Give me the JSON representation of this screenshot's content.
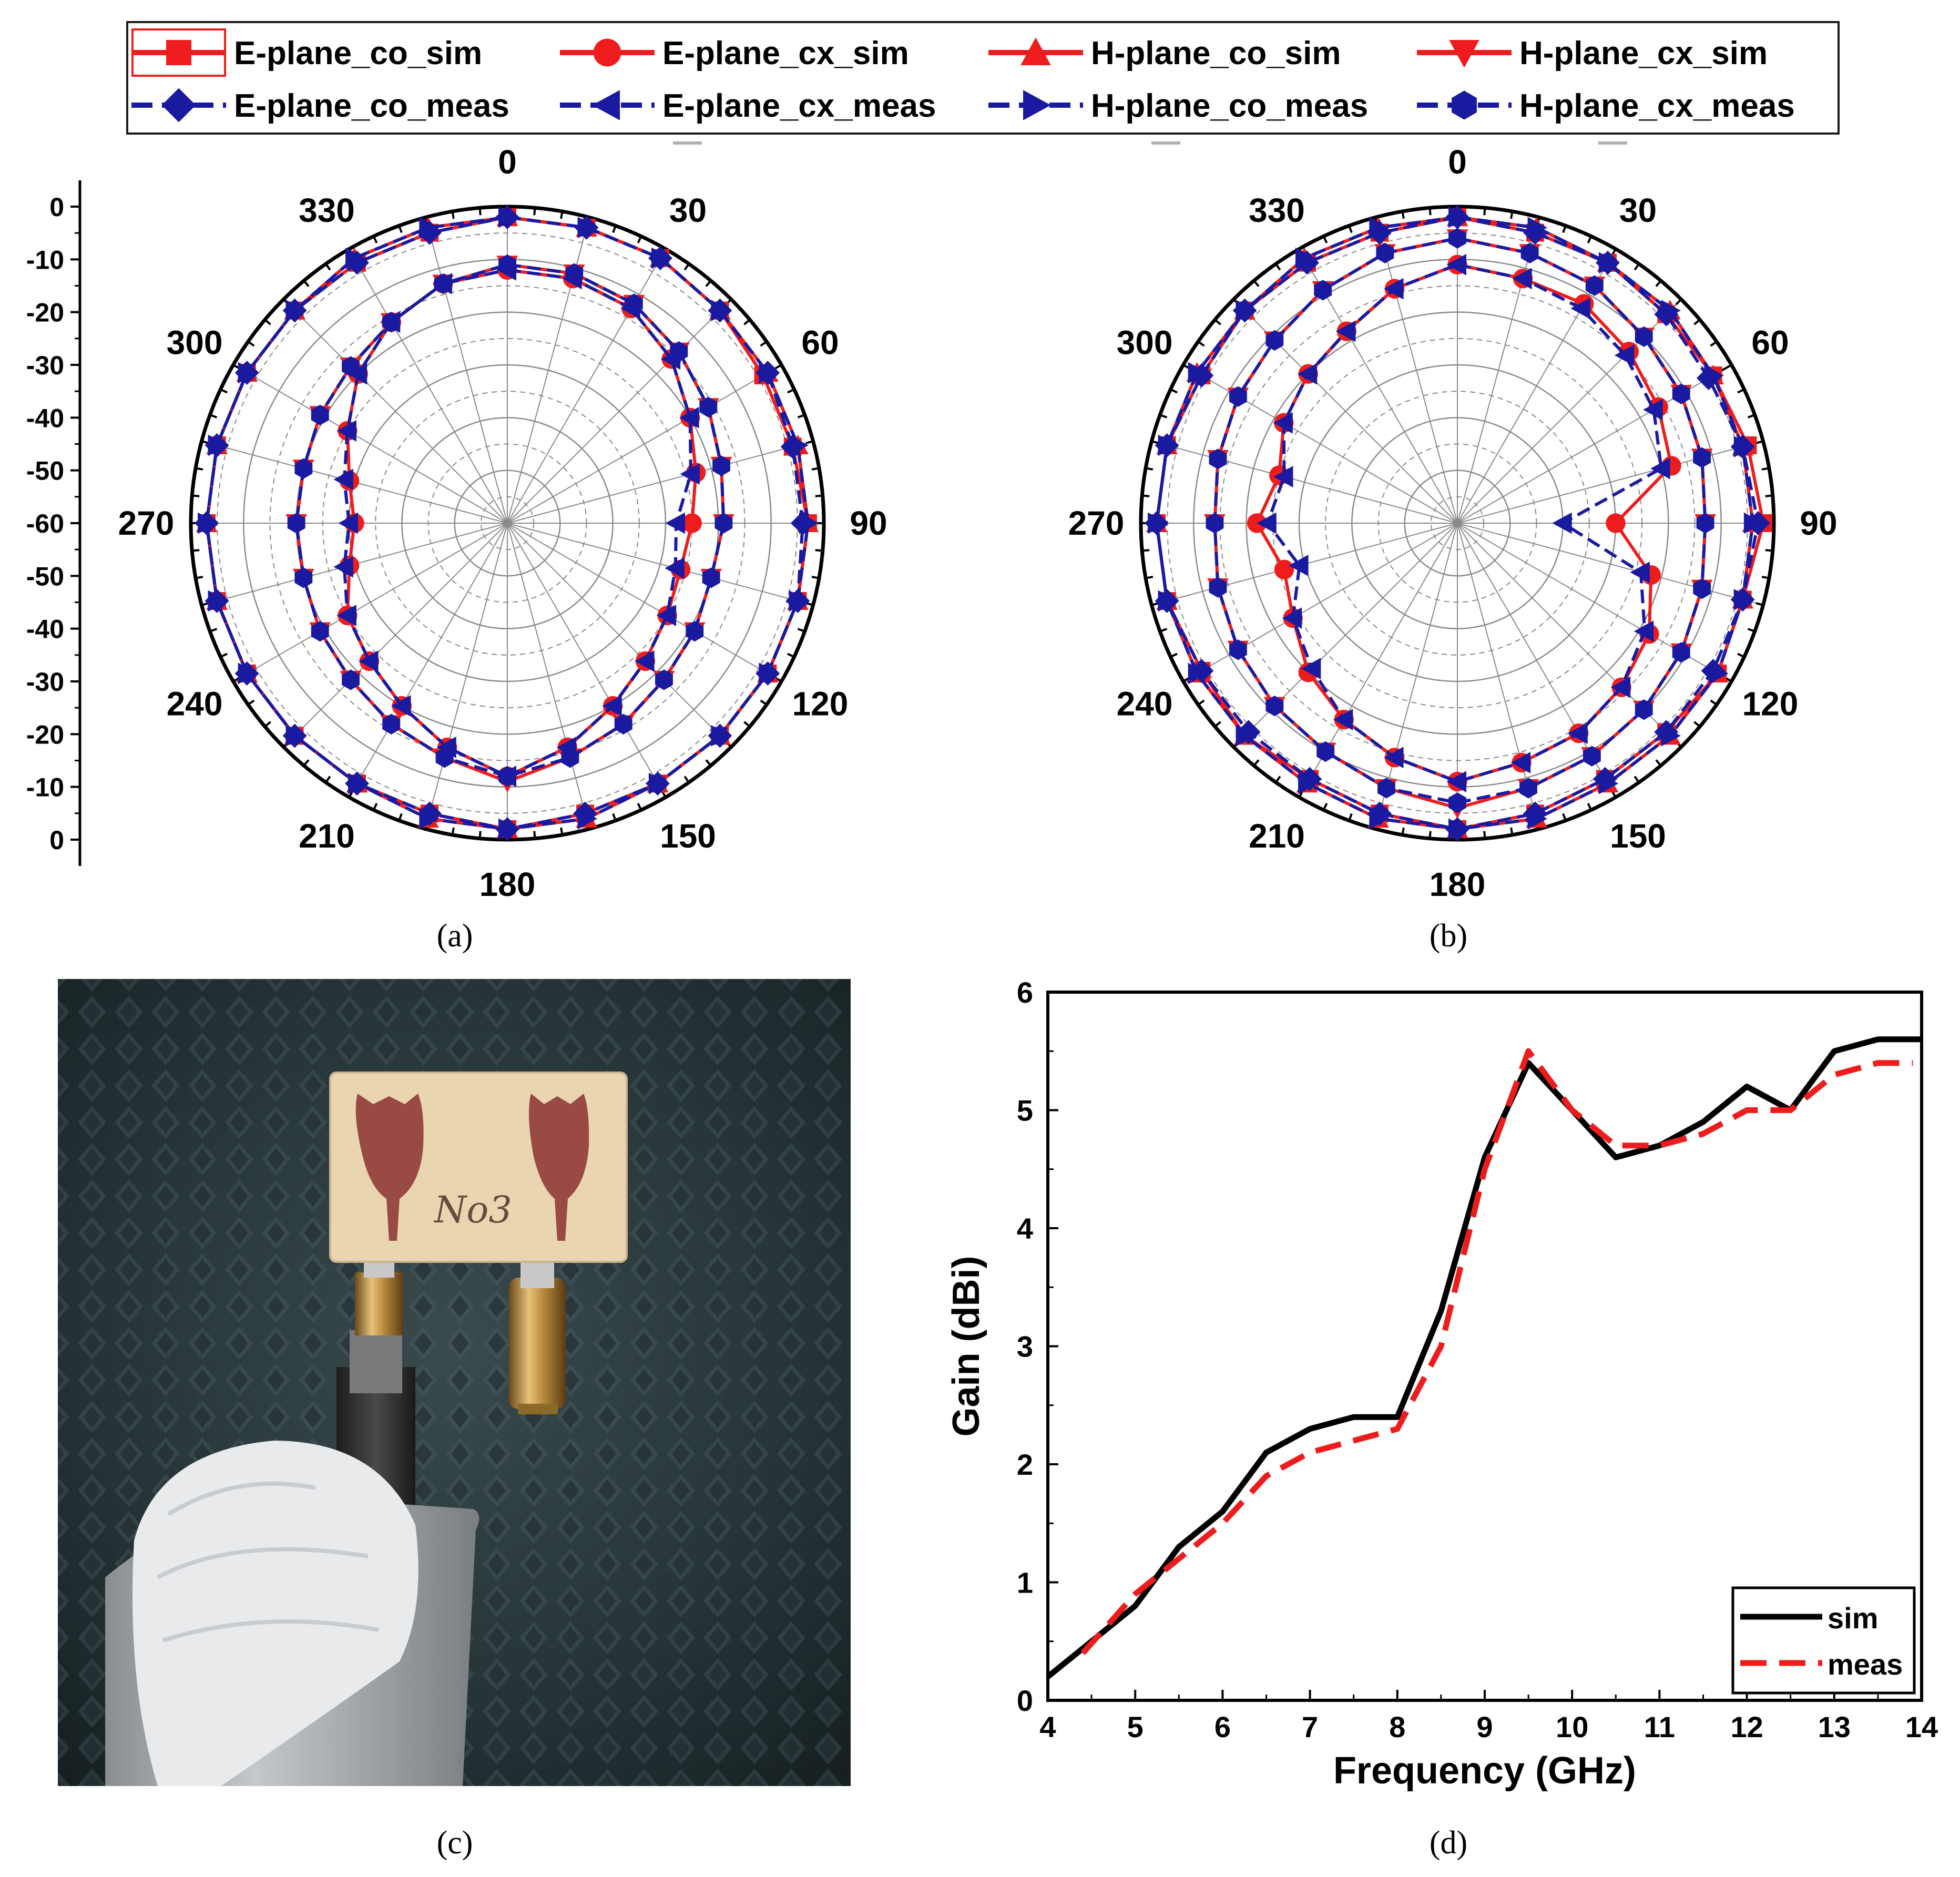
{
  "colors": {
    "sim_red": "#ee1c1c",
    "meas_blue": "#1a1aa0",
    "gain_sim": "#000000",
    "gain_meas": "#ee1c1c",
    "grid": "#7a7a7a"
  },
  "legend": {
    "entries": [
      {
        "label": "E-plane_co_sim",
        "marker": "square",
        "color": "#ee1c1c",
        "dashed": false
      },
      {
        "label": "E-plane_cx_sim",
        "marker": "circle",
        "color": "#ee1c1c",
        "dashed": false
      },
      {
        "label": "H-plane_co_sim",
        "marker": "triangle-up",
        "color": "#ee1c1c",
        "dashed": false
      },
      {
        "label": "H-plane_cx_sim",
        "marker": "triangle-down",
        "color": "#ee1c1c",
        "dashed": false
      },
      {
        "label": "E-plane_co_meas",
        "marker": "diamond",
        "color": "#1a1aa0",
        "dashed": true
      },
      {
        "label": "E-plane_cx_meas",
        "marker": "triangle-left",
        "color": "#1a1aa0",
        "dashed": true
      },
      {
        "label": "H-plane_co_meas",
        "marker": "triangle-right",
        "color": "#1a1aa0",
        "dashed": true
      },
      {
        "label": "H-plane_cx_meas",
        "marker": "hexagon",
        "color": "#1a1aa0",
        "dashed": true
      }
    ]
  },
  "captions": {
    "a": "(a)",
    "b": "(b)",
    "c": "(c)",
    "d": "(d)"
  },
  "photo": {
    "label": "No3"
  },
  "chart_data": [
    {
      "id": "a",
      "type": "polar",
      "title": "",
      "angle_labels": [
        "0",
        "30",
        "60",
        "90",
        "120",
        "150",
        "180",
        "210",
        "240",
        "270",
        "300",
        "330"
      ],
      "radial_range_db": [
        -60,
        0
      ],
      "radial_ticks": [
        "0",
        "-10",
        "-20",
        "-30",
        "-40",
        "-50",
        "-60",
        "-50",
        "-40",
        "-30",
        "-20",
        "-10",
        "0"
      ],
      "series": [
        {
          "name": "E-plane_co_sim",
          "angle_step": 15,
          "r_db": [
            -2,
            -2,
            -2,
            -3,
            -4,
            -4,
            -3,
            -3,
            -3,
            -3,
            -3,
            -3,
            -2,
            -3,
            -3,
            -3,
            -3,
            -3,
            -3,
            -3,
            -3,
            -3,
            -3,
            -3
          ]
        },
        {
          "name": "E-plane_cx_sim",
          "angle_step": 15,
          "r_db": [
            -12,
            -12,
            -13,
            -16,
            -20,
            -23,
            -25,
            -26,
            -25,
            -23,
            -20,
            -16,
            -12,
            -16,
            -20,
            -23,
            -25,
            -29,
            -31,
            -29,
            -25,
            -20,
            -16,
            -13
          ]
        },
        {
          "name": "H-plane_co_sim",
          "angle_step": 15,
          "r_db": [
            -2,
            -2,
            -2,
            -3,
            -3,
            -3,
            -3,
            -3,
            -3,
            -3,
            -3,
            -2,
            -2,
            -2,
            -3,
            -3,
            -3,
            -3,
            -3,
            -3,
            -3,
            -3,
            -2,
            -2
          ]
        },
        {
          "name": "H-plane_cx_sim",
          "angle_step": 15,
          "r_db": [
            -11,
            -11,
            -12,
            -14,
            -16,
            -18,
            -19,
            -20,
            -19,
            -18,
            -16,
            -14,
            -11,
            -14,
            -16,
            -18,
            -19,
            -20,
            -20,
            -20,
            -19,
            -18,
            -16,
            -13
          ]
        },
        {
          "name": "E-plane_co_meas",
          "angle_step": 15,
          "r_db": [
            -2,
            -2,
            -2,
            -3,
            -3,
            -4,
            -4,
            -3,
            -3,
            -3,
            -3,
            -3,
            -2,
            -3,
            -3,
            -3,
            -3,
            -3,
            -3,
            -3,
            -3,
            -3,
            -3,
            -3
          ]
        },
        {
          "name": "E-plane_cx_meas",
          "angle_step": 15,
          "r_db": [
            -12,
            -12,
            -13,
            -16,
            -20,
            -24,
            -28,
            -27,
            -25,
            -23,
            -20,
            -16,
            -12,
            -16,
            -20,
            -23,
            -25,
            -28,
            -30,
            -28,
            -25,
            -20,
            -16,
            -13
          ]
        },
        {
          "name": "H-plane_co_meas",
          "angle_step": 15,
          "r_db": [
            -2,
            -2,
            -2,
            -3,
            -3,
            -3,
            -3,
            -3,
            -3,
            -3,
            -3,
            -2,
            -2,
            -2,
            -3,
            -3,
            -3,
            -3,
            -3,
            -3,
            -3,
            -3,
            -2,
            -2
          ]
        },
        {
          "name": "H-plane_cx_meas",
          "angle_step": 15,
          "r_db": [
            -11,
            -11,
            -12,
            -14,
            -16,
            -18,
            -19,
            -20,
            -19,
            -18,
            -16,
            -14,
            -12,
            -14,
            -16,
            -18,
            -19,
            -20,
            -20,
            -20,
            -19,
            -18,
            -16,
            -13
          ]
        }
      ]
    },
    {
      "id": "b",
      "type": "polar",
      "title": "",
      "angle_labels": [
        "0",
        "30",
        "60",
        "90",
        "120",
        "150",
        "180",
        "210",
        "240",
        "270",
        "300",
        "330"
      ],
      "radial_range_db": [
        -60,
        0
      ],
      "series": [
        {
          "name": "E-plane_co_sim",
          "angle_step": 15,
          "r_db": [
            -2,
            -3,
            -3,
            -4,
            -4,
            -3,
            -2,
            -4,
            -3,
            -4,
            -4,
            -3,
            -2,
            -3,
            -4,
            -3,
            -4,
            -3,
            -3,
            -3,
            -4,
            -3,
            -3,
            -3
          ]
        },
        {
          "name": "E-plane_cx_sim",
          "angle_step": 15,
          "r_db": [
            -11,
            -12,
            -12,
            -14,
            -16,
            -18,
            -30,
            -22,
            -18,
            -16,
            -14,
            -13,
            -11,
            -14,
            -17,
            -20,
            -24,
            -26,
            -22,
            -25,
            -22,
            -20,
            -18,
            -14
          ]
        },
        {
          "name": "H-plane_co_sim",
          "angle_step": 15,
          "r_db": [
            -2,
            -2,
            -3,
            -3,
            -4,
            -4,
            -4,
            -4,
            -3,
            -3,
            -3,
            -2,
            -2,
            -2,
            -3,
            -3,
            -3,
            -3,
            -3,
            -3,
            -3,
            -3,
            -2,
            -2
          ]
        },
        {
          "name": "H-plane_cx_sim",
          "angle_step": 15,
          "r_db": [
            -6,
            -7,
            -8,
            -10,
            -11,
            -12,
            -13,
            -12,
            -11,
            -10,
            -9,
            -8,
            -6,
            -8,
            -10,
            -11,
            -12,
            -13,
            -14,
            -13,
            -12,
            -11,
            -9,
            -7
          ]
        },
        {
          "name": "E-plane_co_meas",
          "angle_step": 15,
          "r_db": [
            -2,
            -3,
            -3,
            -4,
            -5,
            -4,
            -3,
            -4,
            -4,
            -4,
            -4,
            -3,
            -2,
            -3,
            -4,
            -4,
            -4,
            -3,
            -3,
            -3,
            -4,
            -3,
            -3,
            -3
          ]
        },
        {
          "name": "E-plane_cx_meas",
          "angle_step": 15,
          "r_db": [
            -11,
            -12,
            -13,
            -15,
            -17,
            -20,
            -40,
            -24,
            -19,
            -16,
            -14,
            -13,
            -11,
            -14,
            -17,
            -21,
            -24,
            -29,
            -24,
            -26,
            -22,
            -20,
            -18,
            -14
          ]
        },
        {
          "name": "H-plane_co_meas",
          "angle_step": 15,
          "r_db": [
            -2,
            -2,
            -3,
            -3,
            -4,
            -4,
            -4,
            -4,
            -3,
            -3,
            -3,
            -2,
            -2,
            -2,
            -3,
            -3,
            -3,
            -3,
            -3,
            -3,
            -3,
            -3,
            -2,
            -2
          ]
        },
        {
          "name": "H-plane_cx_meas",
          "angle_step": 15,
          "r_db": [
            -6,
            -7,
            -8,
            -10,
            -11,
            -12,
            -13,
            -12,
            -11,
            -10,
            -9,
            -8,
            -7,
            -8,
            -10,
            -11,
            -12,
            -13,
            -14,
            -13,
            -12,
            -11,
            -9,
            -7
          ]
        }
      ]
    },
    {
      "id": "d",
      "type": "line",
      "title": "",
      "xlabel": "Frequency (GHz)",
      "ylabel": "Gain (dBi)",
      "xlim": [
        4,
        14
      ],
      "ylim": [
        0,
        6
      ],
      "xticks": [
        "4",
        "5",
        "6",
        "7",
        "8",
        "9",
        "10",
        "11",
        "12",
        "13",
        "14"
      ],
      "yticks": [
        "0",
        "1",
        "2",
        "3",
        "4",
        "5",
        "6"
      ],
      "legend_position": "bottom-right",
      "series": [
        {
          "name": "sim",
          "x": [
            4,
            4.5,
            5,
            5.5,
            6,
            6.5,
            7,
            7.5,
            8,
            8.5,
            9,
            9.5,
            10,
            10.5,
            11,
            11.5,
            12,
            12.5,
            13,
            13.5,
            14
          ],
          "y": [
            0.2,
            0.5,
            0.8,
            1.3,
            1.6,
            2.1,
            2.3,
            2.4,
            2.4,
            3.3,
            4.6,
            5.4,
            5.0,
            4.6,
            4.7,
            4.9,
            5.2,
            5.0,
            5.5,
            5.6,
            5.6
          ]
        },
        {
          "name": "meas",
          "x": [
            4.4,
            5,
            5.5,
            6,
            6.5,
            7,
            7.5,
            8,
            8.5,
            9,
            9.5,
            10,
            10.5,
            11,
            11.5,
            12,
            12.5,
            13,
            13.5,
            13.9
          ],
          "y": [
            0.4,
            0.9,
            1.2,
            1.5,
            1.9,
            2.1,
            2.2,
            2.3,
            3.0,
            4.5,
            5.5,
            5.0,
            4.7,
            4.7,
            4.8,
            5.0,
            5.0,
            5.3,
            5.4,
            5.4
          ]
        }
      ]
    }
  ]
}
